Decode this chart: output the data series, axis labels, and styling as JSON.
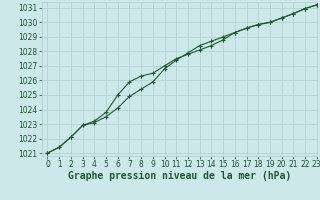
{
  "title": "Graphe pression niveau de la mer (hPa)",
  "background_color": "#cce8ea",
  "grid_color": "#b0cfd1",
  "line_color": "#1a5c2a",
  "xlim": [
    -0.5,
    23
  ],
  "ylim": [
    1020.8,
    1031.4
  ],
  "yticks": [
    1021,
    1022,
    1023,
    1024,
    1025,
    1026,
    1027,
    1028,
    1029,
    1030,
    1031
  ],
  "xticks": [
    0,
    1,
    2,
    3,
    4,
    5,
    6,
    7,
    8,
    9,
    10,
    11,
    12,
    13,
    14,
    15,
    16,
    17,
    18,
    19,
    20,
    21,
    22,
    23
  ],
  "line1_x": [
    0,
    1,
    2,
    3,
    4,
    5,
    6,
    7,
    8,
    9,
    10,
    11,
    12,
    13,
    14,
    15,
    16,
    17,
    18,
    19,
    20,
    21,
    22,
    23
  ],
  "line1_y": [
    1021.0,
    1021.4,
    1022.1,
    1022.9,
    1023.1,
    1023.5,
    1024.1,
    1024.9,
    1025.4,
    1025.9,
    1026.8,
    1027.4,
    1027.9,
    1028.4,
    1028.7,
    1029.0,
    1029.3,
    1029.6,
    1029.85,
    1030.0,
    1030.3,
    1030.6,
    1030.95,
    1031.2
  ],
  "line2_x": [
    0,
    1,
    2,
    3,
    4,
    5,
    6,
    7,
    8,
    9,
    10,
    11,
    12,
    13,
    14,
    15,
    16,
    17,
    18,
    19,
    20,
    21,
    22,
    23
  ],
  "line2_y": [
    1021.0,
    1021.4,
    1022.1,
    1022.9,
    1023.2,
    1023.8,
    1025.0,
    1025.9,
    1026.3,
    1026.5,
    1027.0,
    1027.5,
    1027.8,
    1028.1,
    1028.4,
    1028.8,
    1029.3,
    1029.6,
    1029.85,
    1030.0,
    1030.3,
    1030.6,
    1030.95,
    1031.2
  ],
  "title_fontsize": 7,
  "tick_fontsize": 5.5,
  "ylabel_fontsize": 5.5
}
